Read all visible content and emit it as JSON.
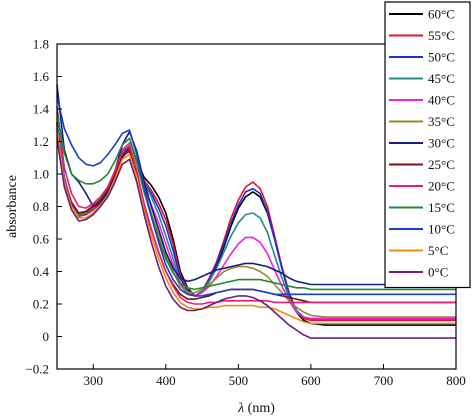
{
  "chart_data": {
    "type": "line",
    "xlabel": "λ (nm)",
    "xlabel_symbol": "λ",
    "xlabel_unit": " (nm)",
    "ylabel": "absorbance",
    "xlim": [
      250,
      800
    ],
    "ylim": [
      -0.2,
      1.8
    ],
    "x_ticks": [
      300,
      400,
      500,
      600,
      700,
      800
    ],
    "y_ticks": [
      -0.2,
      0,
      0.2,
      0.4,
      0.6,
      0.8,
      1.0,
      1.2,
      1.4,
      1.6,
      1.8
    ],
    "y_tick_labels": [
      "−0.2",
      "0",
      "0.2",
      "0.4",
      "0.6",
      "0.8",
      "1.0",
      "1.2",
      "1.4",
      "1.6",
      "1.8"
    ],
    "grid": false,
    "legend_position": "top-right",
    "x": [
      250,
      260,
      270,
      280,
      290,
      300,
      310,
      320,
      330,
      340,
      350,
      360,
      370,
      380,
      390,
      400,
      410,
      420,
      430,
      440,
      450,
      460,
      470,
      480,
      490,
      500,
      510,
      520,
      530,
      540,
      550,
      560,
      570,
      580,
      590,
      600,
      620,
      650,
      700,
      750,
      800
    ],
    "series": [
      {
        "name": "60°C",
        "color": "#000000",
        "values": [
          1.32,
          0.98,
          0.82,
          0.75,
          0.76,
          0.79,
          0.83,
          0.88,
          0.98,
          1.12,
          1.16,
          1.08,
          0.98,
          0.93,
          0.86,
          0.76,
          0.6,
          0.4,
          0.3,
          0.25,
          0.27,
          0.34,
          0.43,
          0.55,
          0.68,
          0.79,
          0.86,
          0.89,
          0.86,
          0.76,
          0.6,
          0.42,
          0.26,
          0.15,
          0.1,
          0.08,
          0.07,
          0.07,
          0.07,
          0.07,
          0.07
        ]
      },
      {
        "name": "55°C",
        "color": "#e8102a",
        "values": [
          1.3,
          0.96,
          0.81,
          0.74,
          0.75,
          0.78,
          0.82,
          0.87,
          0.97,
          1.1,
          1.15,
          1.07,
          0.96,
          0.9,
          0.82,
          0.72,
          0.57,
          0.38,
          0.29,
          0.25,
          0.28,
          0.36,
          0.46,
          0.59,
          0.73,
          0.84,
          0.92,
          0.95,
          0.91,
          0.8,
          0.62,
          0.43,
          0.27,
          0.16,
          0.11,
          0.1,
          0.1,
          0.1,
          0.1,
          0.1,
          0.1
        ]
      },
      {
        "name": "50°C",
        "color": "#1e2fd6",
        "values": [
          1.31,
          0.97,
          0.82,
          0.75,
          0.76,
          0.79,
          0.83,
          0.88,
          0.98,
          1.12,
          1.17,
          1.08,
          0.95,
          0.88,
          0.79,
          0.68,
          0.53,
          0.36,
          0.28,
          0.25,
          0.28,
          0.35,
          0.45,
          0.57,
          0.7,
          0.81,
          0.89,
          0.91,
          0.88,
          0.77,
          0.6,
          0.42,
          0.26,
          0.16,
          0.12,
          0.11,
          0.11,
          0.11,
          0.11,
          0.11,
          0.11
        ]
      },
      {
        "name": "45°C",
        "color": "#1f8c8c",
        "values": [
          1.3,
          0.97,
          0.82,
          0.75,
          0.76,
          0.79,
          0.84,
          0.9,
          1.0,
          1.14,
          1.19,
          1.09,
          0.95,
          0.86,
          0.75,
          0.62,
          0.48,
          0.33,
          0.27,
          0.25,
          0.28,
          0.34,
          0.42,
          0.52,
          0.62,
          0.7,
          0.75,
          0.76,
          0.73,
          0.64,
          0.5,
          0.36,
          0.24,
          0.16,
          0.12,
          0.11,
          0.11,
          0.11,
          0.11,
          0.11,
          0.11
        ]
      },
      {
        "name": "40°C",
        "color": "#f020e0",
        "values": [
          1.28,
          0.96,
          0.83,
          0.76,
          0.77,
          0.81,
          0.86,
          0.92,
          1.02,
          1.15,
          1.19,
          1.08,
          0.92,
          0.81,
          0.7,
          0.57,
          0.44,
          0.32,
          0.26,
          0.25,
          0.27,
          0.31,
          0.37,
          0.44,
          0.51,
          0.57,
          0.61,
          0.61,
          0.58,
          0.51,
          0.41,
          0.31,
          0.22,
          0.15,
          0.12,
          0.11,
          0.11,
          0.11,
          0.11,
          0.11,
          0.11
        ]
      },
      {
        "name": "35°C",
        "color": "#9a8a2a",
        "values": [
          1.27,
          0.95,
          0.82,
          0.76,
          0.77,
          0.8,
          0.85,
          0.91,
          1.01,
          1.14,
          1.18,
          1.06,
          0.89,
          0.76,
          0.63,
          0.5,
          0.4,
          0.31,
          0.27,
          0.27,
          0.29,
          0.32,
          0.36,
          0.4,
          0.42,
          0.43,
          0.43,
          0.42,
          0.4,
          0.37,
          0.32,
          0.27,
          0.22,
          0.18,
          0.15,
          0.13,
          0.12,
          0.12,
          0.12,
          0.12,
          0.12
        ]
      },
      {
        "name": "30°C",
        "color": "#141c8a",
        "values": [
          1.55,
          1.15,
          1.0,
          0.95,
          0.88,
          0.8,
          0.82,
          0.9,
          1.02,
          1.18,
          1.26,
          1.14,
          0.95,
          0.8,
          0.66,
          0.52,
          0.42,
          0.36,
          0.34,
          0.35,
          0.37,
          0.39,
          0.41,
          0.42,
          0.43,
          0.44,
          0.45,
          0.45,
          0.44,
          0.43,
          0.41,
          0.39,
          0.36,
          0.34,
          0.33,
          0.32,
          0.32,
          0.32,
          0.32,
          0.32,
          0.32
        ]
      },
      {
        "name": "25°C",
        "color": "#7a1010",
        "values": [
          1.24,
          0.94,
          0.82,
          0.76,
          0.77,
          0.8,
          0.84,
          0.9,
          0.99,
          1.11,
          1.14,
          1.0,
          0.81,
          0.66,
          0.52,
          0.4,
          0.32,
          0.26,
          0.23,
          0.23,
          0.24,
          0.25,
          0.27,
          0.28,
          0.29,
          0.29,
          0.29,
          0.29,
          0.28,
          0.27,
          0.26,
          0.25,
          0.24,
          0.23,
          0.22,
          0.21,
          0.21,
          0.21,
          0.21,
          0.21,
          0.21
        ]
      },
      {
        "name": "20°C",
        "color": "#e0207a",
        "values": [
          1.42,
          1.04,
          0.88,
          0.8,
          0.79,
          0.82,
          0.86,
          0.92,
          1.02,
          1.14,
          1.17,
          1.02,
          0.82,
          0.66,
          0.52,
          0.4,
          0.31,
          0.24,
          0.21,
          0.2,
          0.2,
          0.21,
          0.21,
          0.22,
          0.22,
          0.22,
          0.22,
          0.22,
          0.22,
          0.22,
          0.21,
          0.21,
          0.21,
          0.21,
          0.21,
          0.21,
          0.21,
          0.21,
          0.21,
          0.21,
          0.21
        ]
      },
      {
        "name": "15°C",
        "color": "#1e8a30",
        "values": [
          1.38,
          1.13,
          1.0,
          0.96,
          0.94,
          0.94,
          0.96,
          1.0,
          1.08,
          1.18,
          1.22,
          1.08,
          0.89,
          0.74,
          0.6,
          0.48,
          0.39,
          0.33,
          0.3,
          0.29,
          0.3,
          0.31,
          0.32,
          0.33,
          0.34,
          0.35,
          0.35,
          0.35,
          0.35,
          0.34,
          0.33,
          0.32,
          0.31,
          0.3,
          0.3,
          0.29,
          0.29,
          0.29,
          0.29,
          0.29,
          0.29
        ]
      },
      {
        "name": "10°C",
        "color": "#1840c8",
        "values": [
          1.48,
          1.28,
          1.18,
          1.1,
          1.06,
          1.05,
          1.07,
          1.12,
          1.18,
          1.25,
          1.27,
          1.12,
          0.92,
          0.74,
          0.58,
          0.44,
          0.35,
          0.29,
          0.26,
          0.25,
          0.25,
          0.26,
          0.27,
          0.28,
          0.29,
          0.29,
          0.29,
          0.29,
          0.28,
          0.27,
          0.26,
          0.26,
          0.26,
          0.26,
          0.26,
          0.26,
          0.26,
          0.26,
          0.26,
          0.26,
          0.26
        ]
      },
      {
        "name": "5°C",
        "color": "#f08c10",
        "values": [
          1.26,
          0.94,
          0.8,
          0.73,
          0.73,
          0.76,
          0.81,
          0.87,
          0.97,
          1.09,
          1.12,
          0.98,
          0.78,
          0.62,
          0.48,
          0.36,
          0.27,
          0.21,
          0.18,
          0.17,
          0.17,
          0.18,
          0.18,
          0.19,
          0.19,
          0.19,
          0.19,
          0.19,
          0.18,
          0.18,
          0.17,
          0.15,
          0.13,
          0.11,
          0.09,
          0.08,
          0.08,
          0.08,
          0.08,
          0.08,
          0.08
        ]
      },
      {
        "name": "0°C",
        "color": "#6a2080",
        "values": [
          1.22,
          0.92,
          0.78,
          0.71,
          0.72,
          0.75,
          0.8,
          0.86,
          0.95,
          1.06,
          1.09,
          0.95,
          0.75,
          0.58,
          0.43,
          0.31,
          0.23,
          0.18,
          0.16,
          0.16,
          0.17,
          0.19,
          0.21,
          0.23,
          0.24,
          0.25,
          0.25,
          0.24,
          0.22,
          0.19,
          0.15,
          0.11,
          0.07,
          0.04,
          0.01,
          -0.01,
          -0.01,
          -0.01,
          -0.01,
          -0.01,
          -0.01
        ]
      }
    ]
  }
}
